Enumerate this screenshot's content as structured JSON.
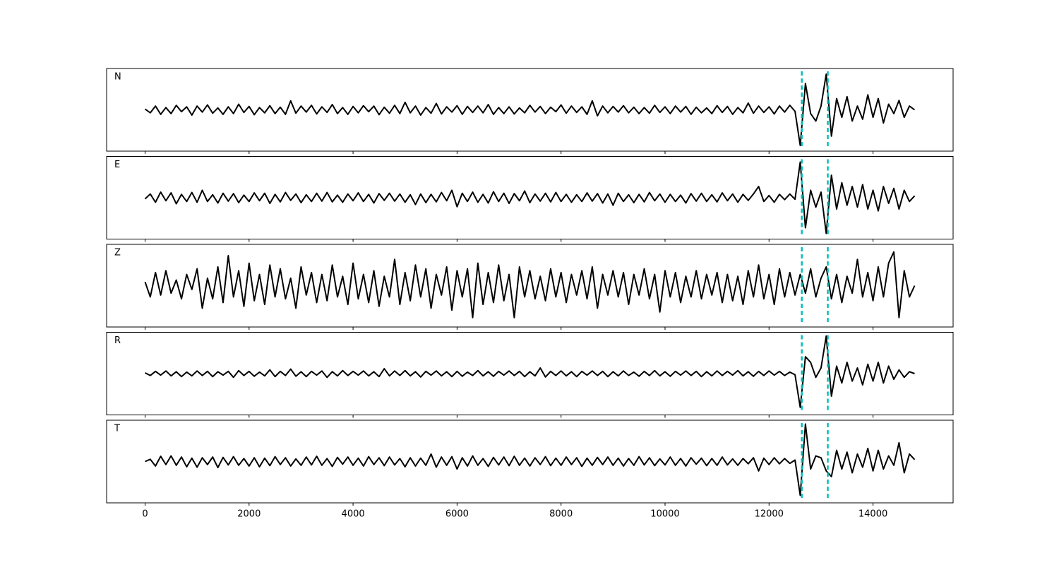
{
  "chart_data": {
    "type": "line",
    "xlim": [
      -740,
      15540
    ],
    "xticks": [
      0,
      2000,
      4000,
      6000,
      8000,
      10000,
      12000,
      14000
    ],
    "ylim": [
      -1.1,
      1.1
    ],
    "color": "#000000",
    "marker_color": "#00bfbf",
    "markers": [
      12630,
      13130
    ],
    "x": [
      0,
      100,
      200,
      300,
      400,
      500,
      600,
      700,
      800,
      900,
      1000,
      1100,
      1200,
      1300,
      1400,
      1500,
      1600,
      1700,
      1800,
      1900,
      2000,
      2100,
      2200,
      2300,
      2400,
      2500,
      2600,
      2700,
      2800,
      2900,
      3000,
      3100,
      3200,
      3300,
      3400,
      3500,
      3600,
      3700,
      3800,
      3900,
      4000,
      4100,
      4200,
      4300,
      4400,
      4500,
      4600,
      4700,
      4800,
      4900,
      5000,
      5100,
      5200,
      5300,
      5400,
      5500,
      5600,
      5700,
      5800,
      5900,
      6000,
      6100,
      6200,
      6300,
      6400,
      6500,
      6600,
      6700,
      6800,
      6900,
      7000,
      7100,
      7200,
      7300,
      7400,
      7500,
      7600,
      7700,
      7800,
      7900,
      8000,
      8100,
      8200,
      8300,
      8400,
      8500,
      8600,
      8700,
      8800,
      8900,
      9000,
      9100,
      9200,
      9300,
      9400,
      9500,
      9600,
      9700,
      9800,
      9900,
      10000,
      10100,
      10200,
      10300,
      10400,
      10500,
      10600,
      10700,
      10800,
      10900,
      11000,
      11100,
      11200,
      11300,
      11400,
      11500,
      11600,
      11700,
      11800,
      11900,
      12000,
      12100,
      12200,
      12300,
      12400,
      12500,
      12600,
      12700,
      12800,
      12900,
      13000,
      13100,
      13200,
      13300,
      13400,
      13500,
      13600,
      13700,
      13800,
      13900,
      14000,
      14100,
      14200,
      14300,
      14400,
      14500,
      14600,
      14700,
      14800
    ],
    "panels": [
      {
        "title": "N",
        "values": [
          0.02,
          -0.08,
          0.1,
          -0.12,
          0.06,
          -0.1,
          0.12,
          -0.05,
          0.08,
          -0.14,
          0.1,
          -0.06,
          0.13,
          -0.09,
          0.05,
          -0.12,
          0.08,
          -0.1,
          0.15,
          -0.07,
          0.09,
          -0.13,
          0.06,
          -0.08,
          0.11,
          -0.1,
          0.07,
          -0.12,
          0.24,
          -0.09,
          0.1,
          -0.06,
          0.12,
          -0.11,
          0.08,
          -0.07,
          0.14,
          -0.1,
          0.06,
          -0.12,
          0.09,
          -0.08,
          0.11,
          -0.05,
          0.1,
          -0.13,
          0.07,
          -0.09,
          0.12,
          -0.1,
          0.2,
          -0.08,
          0.1,
          -0.14,
          0.06,
          -0.09,
          0.17,
          -0.11,
          0.08,
          -0.06,
          0.11,
          -0.12,
          0.09,
          -0.07,
          0.1,
          -0.08,
          0.14,
          -0.12,
          0.06,
          -0.1,
          0.08,
          -0.11,
          0.05,
          -0.08,
          0.12,
          -0.06,
          0.09,
          -0.1,
          0.07,
          -0.05,
          0.13,
          -0.09,
          0.1,
          -0.07,
          0.08,
          -0.12,
          0.24,
          -0.16,
          0.1,
          -0.08,
          0.09,
          -0.06,
          0.11,
          -0.08,
          0.07,
          -0.1,
          0.06,
          -0.09,
          0.12,
          -0.07,
          0.08,
          -0.1,
          0.1,
          -0.06,
          0.09,
          -0.12,
          0.07,
          -0.08,
          0.05,
          -0.1,
          0.11,
          -0.07,
          0.09,
          -0.12,
          0.06,
          -0.08,
          0.18,
          -0.09,
          0.1,
          -0.07,
          0.08,
          -0.11,
          0.1,
          -0.06,
          0.12,
          -0.04,
          -0.95,
          0.7,
          -0.1,
          -0.3,
          0.1,
          0.95,
          -0.7,
          0.3,
          -0.2,
          0.35,
          -0.3,
          0.1,
          -0.25,
          0.4,
          -0.2,
          0.3,
          -0.35,
          0.15,
          -0.1,
          0.25,
          -0.2,
          0.1,
          0.0
        ]
      },
      {
        "title": "E",
        "values": [
          -0.03,
          0.1,
          -0.12,
          0.15,
          -0.08,
          0.13,
          -0.16,
          0.09,
          -0.1,
          0.14,
          -0.12,
          0.2,
          -0.1,
          0.08,
          -0.14,
          0.12,
          -0.09,
          0.11,
          -0.13,
          0.07,
          -0.1,
          0.13,
          -0.08,
          0.12,
          -0.15,
          0.09,
          -0.11,
          0.14,
          -0.07,
          0.1,
          -0.13,
          0.08,
          -0.1,
          0.12,
          -0.09,
          0.14,
          -0.11,
          0.07,
          -0.12,
          0.1,
          -0.08,
          0.13,
          -0.1,
          0.09,
          -0.14,
          0.11,
          -0.07,
          0.12,
          -0.09,
          0.1,
          -0.12,
          0.08,
          -0.18,
          0.1,
          -0.13,
          0.09,
          -0.11,
          0.14,
          -0.08,
          0.2,
          -0.24,
          0.12,
          -0.1,
          0.15,
          -0.12,
          0.09,
          -0.14,
          0.16,
          -0.1,
          0.12,
          -0.15,
          0.11,
          -0.08,
          0.18,
          -0.13,
          0.1,
          -0.09,
          0.12,
          -0.11,
          0.14,
          -0.1,
          0.09,
          -0.12,
          0.08,
          -0.1,
          0.13,
          -0.09,
          0.11,
          -0.14,
          0.1,
          -0.2,
          0.12,
          -0.1,
          0.08,
          -0.13,
          0.09,
          -0.11,
          0.14,
          -0.08,
          0.1,
          -0.12,
          0.09,
          -0.1,
          0.07,
          -0.14,
          0.11,
          -0.09,
          0.12,
          -0.1,
          0.08,
          -0.11,
          0.13,
          -0.08,
          0.1,
          -0.12,
          0.09,
          -0.07,
          0.1,
          0.3,
          -0.1,
          0.06,
          -0.12,
          0.09,
          -0.05,
          0.1,
          -0.04,
          0.95,
          -0.8,
          0.2,
          -0.25,
          0.15,
          -0.95,
          0.6,
          -0.3,
          0.4,
          -0.2,
          0.3,
          -0.25,
          0.35,
          -0.3,
          0.2,
          -0.35,
          0.3,
          -0.15,
          0.25,
          -0.3,
          0.2,
          -0.1,
          0.05
        ]
      },
      {
        "title": "Z",
        "values": [
          0.1,
          -0.3,
          0.35,
          -0.25,
          0.4,
          -0.2,
          0.15,
          -0.35,
          0.3,
          -0.1,
          0.45,
          -0.6,
          0.2,
          -0.35,
          0.5,
          -0.45,
          0.8,
          -0.3,
          0.4,
          -0.55,
          0.6,
          -0.4,
          0.3,
          -0.5,
          0.55,
          -0.3,
          0.45,
          -0.35,
          0.2,
          -0.6,
          0.5,
          -0.25,
          0.35,
          -0.45,
          0.3,
          -0.4,
          0.55,
          -0.3,
          0.25,
          -0.5,
          0.6,
          -0.35,
          0.3,
          -0.45,
          0.4,
          -0.55,
          0.25,
          -0.3,
          0.7,
          -0.5,
          0.35,
          -0.4,
          0.55,
          -0.3,
          0.45,
          -0.6,
          0.3,
          -0.25,
          0.5,
          -0.65,
          0.4,
          -0.3,
          0.45,
          -0.85,
          0.6,
          -0.5,
          0.35,
          -0.45,
          0.55,
          -0.4,
          0.3,
          -0.85,
          0.5,
          -0.3,
          0.4,
          -0.35,
          0.25,
          -0.4,
          0.45,
          -0.3,
          0.35,
          -0.45,
          0.3,
          -0.25,
          0.4,
          -0.35,
          0.5,
          -0.6,
          0.3,
          -0.25,
          0.4,
          -0.3,
          0.35,
          -0.5,
          0.3,
          -0.25,
          0.45,
          -0.35,
          0.3,
          -0.7,
          0.4,
          -0.3,
          0.35,
          -0.45,
          0.25,
          -0.3,
          0.4,
          -0.35,
          0.3,
          -0.25,
          0.35,
          -0.45,
          0.3,
          -0.4,
          0.25,
          -0.5,
          0.4,
          -0.3,
          0.55,
          -0.35,
          0.3,
          -0.5,
          0.45,
          -0.3,
          0.35,
          -0.25,
          0.3,
          -0.2,
          0.45,
          -0.3,
          0.2,
          0.5,
          -0.35,
          0.3,
          -0.45,
          0.25,
          -0.2,
          0.7,
          -0.3,
          0.35,
          -0.4,
          0.5,
          -0.3,
          0.6,
          0.9,
          -0.85,
          0.4,
          -0.3,
          0.0
        ]
      },
      {
        "title": "R",
        "values": [
          0.02,
          -0.05,
          0.06,
          -0.04,
          0.07,
          -0.06,
          0.05,
          -0.08,
          0.04,
          -0.06,
          0.07,
          -0.05,
          0.06,
          -0.08,
          0.05,
          -0.04,
          0.06,
          -0.1,
          0.08,
          -0.05,
          0.06,
          -0.07,
          0.04,
          -0.06,
          0.1,
          -0.08,
          0.06,
          -0.05,
          0.12,
          -0.07,
          0.05,
          -0.08,
          0.06,
          -0.04,
          0.07,
          -0.1,
          0.05,
          -0.06,
          0.08,
          -0.05,
          0.06,
          -0.04,
          0.07,
          -0.06,
          0.05,
          -0.08,
          0.13,
          -0.06,
          0.07,
          -0.05,
          0.08,
          -0.06,
          0.05,
          -0.09,
          0.06,
          -0.04,
          0.07,
          -0.06,
          0.05,
          -0.08,
          0.06,
          -0.07,
          0.04,
          -0.05,
          0.08,
          -0.06,
          0.05,
          -0.07,
          0.06,
          -0.04,
          0.07,
          -0.05,
          0.06,
          -0.08,
          0.05,
          -0.06,
          0.15,
          -0.09,
          0.06,
          -0.05,
          0.07,
          -0.06,
          0.05,
          -0.08,
          0.06,
          -0.04,
          0.07,
          -0.05,
          0.06,
          -0.08,
          0.05,
          -0.06,
          0.07,
          -0.05,
          0.04,
          -0.07,
          0.06,
          -0.05,
          0.08,
          -0.06,
          0.05,
          -0.07,
          0.06,
          -0.04,
          0.07,
          -0.05,
          0.06,
          -0.08,
          0.05,
          -0.06,
          0.07,
          -0.05,
          0.06,
          -0.04,
          0.08,
          -0.06,
          0.05,
          -0.07,
          0.06,
          -0.05,
          0.07,
          -0.04,
          0.06,
          -0.05,
          0.04,
          -0.03,
          -0.9,
          0.45,
          0.3,
          -0.1,
          0.15,
          1.0,
          -0.6,
          0.2,
          -0.25,
          0.3,
          -0.2,
          0.15,
          -0.3,
          0.25,
          -0.2,
          0.3,
          -0.25,
          0.2,
          -0.15,
          0.1,
          -0.1,
          0.05,
          0.0
        ]
      },
      {
        "title": "T",
        "values": [
          0.0,
          0.06,
          -0.12,
          0.14,
          -0.08,
          0.15,
          -0.1,
          0.12,
          -0.14,
          0.09,
          -0.15,
          0.1,
          -0.08,
          0.12,
          -0.16,
          0.11,
          -0.09,
          0.13,
          -0.1,
          0.08,
          -0.12,
          0.1,
          -0.14,
          0.09,
          -0.11,
          0.13,
          -0.08,
          0.1,
          -0.12,
          0.07,
          -0.1,
          0.12,
          -0.09,
          0.14,
          -0.1,
          0.08,
          -0.13,
          0.11,
          -0.07,
          0.12,
          -0.1,
          0.09,
          -0.12,
          0.13,
          -0.08,
          0.1,
          -0.11,
          0.12,
          -0.09,
          0.08,
          -0.14,
          0.1,
          -0.12,
          0.09,
          -0.1,
          0.2,
          -0.15,
          0.12,
          -0.1,
          0.13,
          -0.2,
          0.1,
          -0.12,
          0.15,
          -0.1,
          0.08,
          -0.13,
          0.11,
          -0.09,
          0.12,
          -0.11,
          0.14,
          -0.1,
          0.09,
          -0.12,
          0.1,
          -0.08,
          0.13,
          -0.11,
          0.09,
          -0.1,
          0.12,
          -0.08,
          0.1,
          -0.13,
          0.09,
          -0.1,
          0.11,
          -0.08,
          0.12,
          -0.1,
          0.09,
          -0.12,
          0.08,
          -0.1,
          0.13,
          -0.09,
          0.1,
          -0.11,
          0.07,
          -0.09,
          0.12,
          -0.1,
          0.08,
          -0.12,
          0.1,
          -0.07,
          0.09,
          -0.11,
          0.08,
          -0.1,
          0.12,
          -0.09,
          0.07,
          -0.1,
          0.08,
          -0.06,
          0.1,
          -0.25,
          0.09,
          -0.08,
          0.1,
          -0.06,
          0.08,
          -0.05,
          0.04,
          -0.9,
          1.0,
          -0.2,
          0.15,
          0.1,
          -0.25,
          -0.4,
          0.3,
          -0.2,
          0.25,
          -0.3,
          0.2,
          -0.15,
          0.35,
          -0.25,
          0.3,
          -0.2,
          0.15,
          -0.1,
          0.5,
          -0.3,
          0.2,
          0.05
        ]
      }
    ]
  }
}
